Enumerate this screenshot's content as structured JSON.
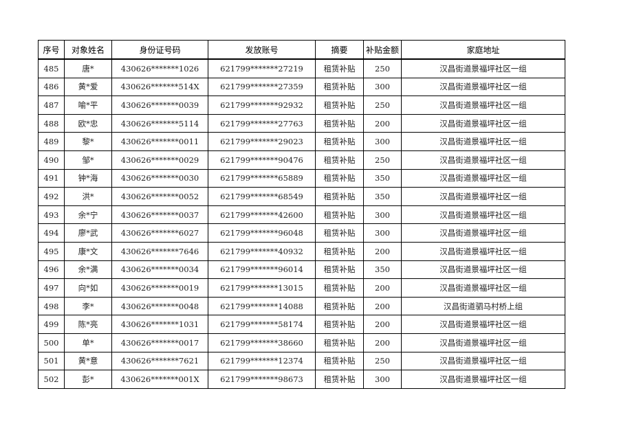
{
  "table": {
    "headers": [
      "序号",
      "对象姓名",
      "身份证号码",
      "发放账号",
      "摘要",
      "补贴金额",
      "家庭地址"
    ],
    "rows": [
      [
        "485",
        "唐*",
        "430626*******1026",
        "621799*******27219",
        "租赁补贴",
        "250",
        "汉昌街道景福坪社区一组"
      ],
      [
        "486",
        "黄*爱",
        "430626*******514X",
        "621799*******27359",
        "租赁补贴",
        "300",
        "汉昌街道景福坪社区一组"
      ],
      [
        "487",
        "喻*平",
        "430626*******0039",
        "621799*******92932",
        "租赁补贴",
        "250",
        "汉昌街道景福坪社区一组"
      ],
      [
        "488",
        "欧*忠",
        "430626*******5114",
        "621799*******27763",
        "租赁补贴",
        "200",
        "汉昌街道景福坪社区一组"
      ],
      [
        "489",
        "黎*",
        "430626*******0011",
        "621799*******29023",
        "租赁补贴",
        "300",
        "汉昌街道景福坪社区一组"
      ],
      [
        "490",
        "邹*",
        "430626*******0029",
        "621799*******90476",
        "租赁补贴",
        "250",
        "汉昌街道景福坪社区一组"
      ],
      [
        "491",
        "钟*海",
        "430626*******0030",
        "621799*******65889",
        "租赁补贴",
        "350",
        "汉昌街道景福坪社区一组"
      ],
      [
        "492",
        "洪*",
        "430626*******0052",
        "621799*******68549",
        "租赁补贴",
        "350",
        "汉昌街道景福坪社区一组"
      ],
      [
        "493",
        "余*宁",
        "430626*******0037",
        "621799*******42600",
        "租赁补贴",
        "300",
        "汉昌街道景福坪社区一组"
      ],
      [
        "494",
        "廖*武",
        "430626*******6027",
        "621799*******96048",
        "租赁补贴",
        "300",
        "汉昌街道景福坪社区一组"
      ],
      [
        "495",
        "康*文",
        "430626*******7646",
        "621799*******40932",
        "租赁补贴",
        "200",
        "汉昌街道景福坪社区一组"
      ],
      [
        "496",
        "余*满",
        "430626*******0034",
        "621799*******96014",
        "租赁补贴",
        "350",
        "汉昌街道景福坪社区一组"
      ],
      [
        "497",
        "向*如",
        "430626*******0019",
        "621799*******13015",
        "租赁补贴",
        "200",
        "汉昌街道景福坪社区一组"
      ],
      [
        "498",
        "李*",
        "430626*******0048",
        "621799*******14088",
        "租赁补贴",
        "200",
        "汉昌街道驷马村桥上组"
      ],
      [
        "499",
        "陈*亮",
        "430626*******1031",
        "621799*******58174",
        "租赁补贴",
        "200",
        "汉昌街道景福坪社区一组"
      ],
      [
        "500",
        "单*",
        "430626*******0017",
        "621799*******38660",
        "租赁补贴",
        "200",
        "汉昌街道景福坪社区一组"
      ],
      [
        "501",
        "黄*意",
        "430626*******7621",
        "621799*******12374",
        "租赁补贴",
        "250",
        "汉昌街道景福坪社区一组"
      ],
      [
        "502",
        "彭*",
        "430626*******001X",
        "621799*******98673",
        "租赁补贴",
        "300",
        "汉昌街道景福坪社区一组"
      ]
    ]
  }
}
